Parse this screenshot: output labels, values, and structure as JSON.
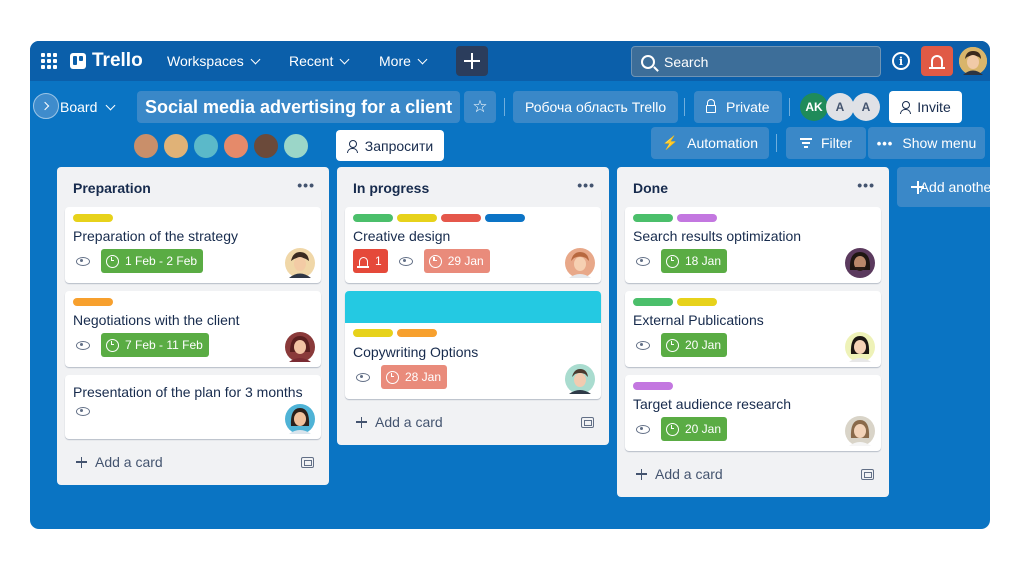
{
  "topbar": {
    "logo": "Trello",
    "nav": [
      {
        "label": "Workspaces"
      },
      {
        "label": "Recent"
      },
      {
        "label": "More"
      }
    ],
    "search_placeholder": "Search"
  },
  "board": {
    "view_label": "Board",
    "title": "Social media advertising for a client",
    "workspace": "Робоча область Trello",
    "visibility": "Private",
    "members": [
      "AK",
      "A",
      "A"
    ],
    "invite_label": "Invite",
    "request_label": "Запросити",
    "automation_label": "Automation",
    "filter_label": "Filter",
    "show_menu_label": "Show menu",
    "add_list_label": "Add another list"
  },
  "colors": {
    "board_bg": "#0a74c3",
    "topbar_bg": "#0b5faa",
    "label_green": "#4bbf6b",
    "label_yellow": "#e7d21b",
    "label_orange": "#f7a02e",
    "label_red": "#e5574b",
    "label_blue": "#0c74c6",
    "label_purple": "#c377e0",
    "due_green": "#5aac44",
    "due_red": "#e98b7b",
    "cover_cyan": "#24c9e2"
  },
  "lists": [
    {
      "title": "Preparation",
      "add_card": "Add a card",
      "cards": [
        {
          "labels": [
            "yellow"
          ],
          "title": "Preparation of the strategy",
          "due": "1 Feb - 2 Feb",
          "due_color": "green"
        },
        {
          "labels": [
            "orange"
          ],
          "title": "Negotiations with the client",
          "due": "7 Feb - 11 Feb",
          "due_color": "green"
        },
        {
          "labels": [],
          "title": "Presentation of the plan for 3 months"
        }
      ]
    },
    {
      "title": "In progress",
      "add_card": "Add a card",
      "cards": [
        {
          "labels": [
            "green",
            "yellow",
            "red",
            "blue"
          ],
          "title": "Creative design",
          "notifications": "1",
          "due": "29 Jan",
          "due_color": "red"
        },
        {
          "cover": "cyan",
          "labels": [
            "yellow",
            "orange"
          ],
          "title": "Copywriting Options",
          "due": "28 Jan",
          "due_color": "red"
        }
      ]
    },
    {
      "title": "Done",
      "add_card": "Add a card",
      "cards": [
        {
          "labels": [
            "green",
            "purple"
          ],
          "title": "Search results optimization",
          "due": "18 Jan",
          "due_color": "green"
        },
        {
          "labels": [
            "green",
            "yellow"
          ],
          "title": "External Publications",
          "due": "20 Jan",
          "due_color": "green"
        },
        {
          "labels": [
            "purple"
          ],
          "title": "Target audience research",
          "due": "20 Jan",
          "due_color": "green"
        }
      ]
    }
  ]
}
